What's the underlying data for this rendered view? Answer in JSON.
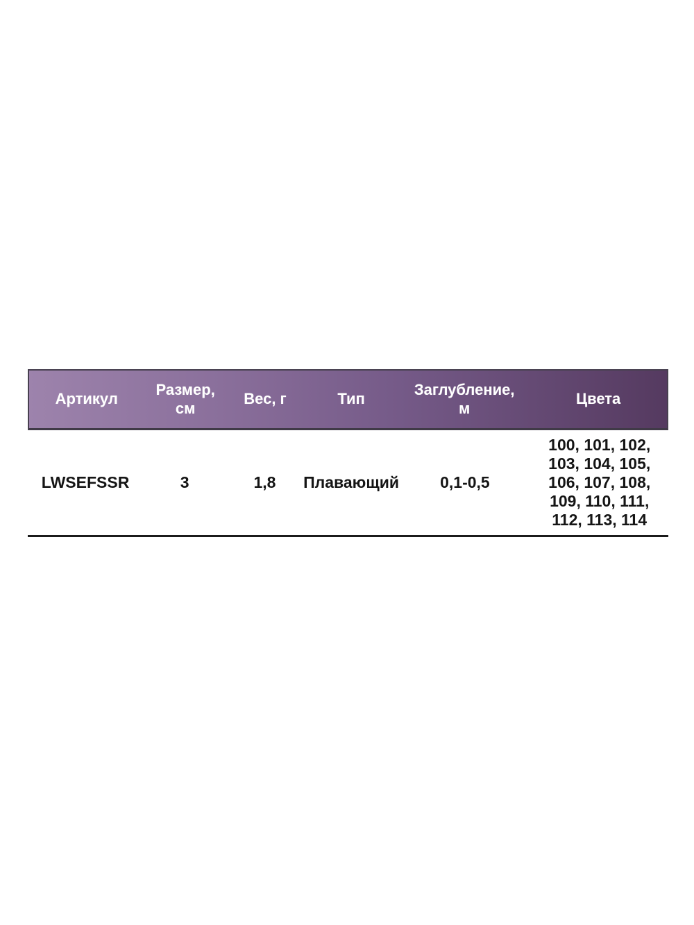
{
  "page": {
    "background_color": "#ffffff"
  },
  "table": {
    "header": {
      "background_gradient_start": "#9d83ac",
      "background_gradient_end": "#553a60",
      "text_color": "#ffffff",
      "columns": [
        {
          "label": "Артикул"
        },
        {
          "label": "Размер,\nсм"
        },
        {
          "label": "Вес, г"
        },
        {
          "label": "Тип"
        },
        {
          "label": "Заглубление,\nм"
        },
        {
          "label": "Цвета"
        }
      ]
    },
    "row": {
      "article": "LWSEFSSR",
      "size_cm": "3",
      "weight_g": "1,8",
      "type": "Плавающий",
      "depth_m": "0,1-0,5",
      "colors": "100, 101, 102,\n103, 104, 105,\n106, 107, 108,\n109, 110, 111,\n112, 113, 114"
    },
    "rule_color": "#1b1b1b"
  }
}
